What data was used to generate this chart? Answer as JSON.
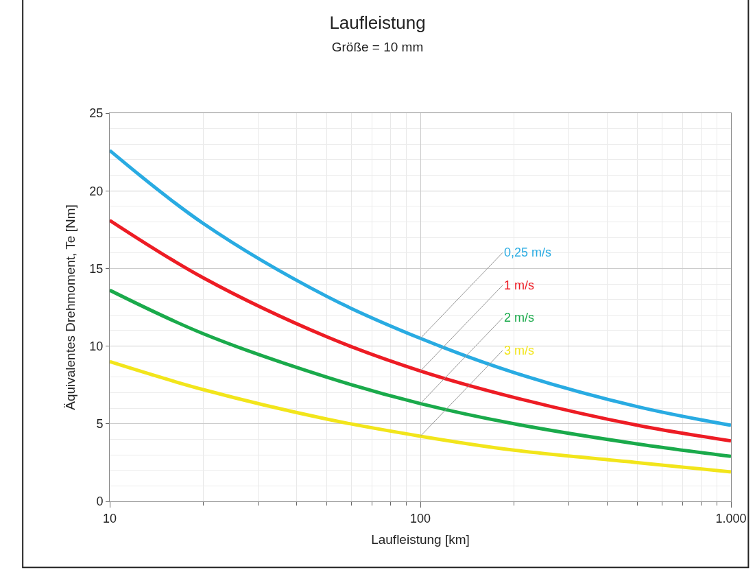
{
  "chart_data": {
    "type": "line",
    "title": "Laufleistung",
    "subtitle": "Größe = 10 mm",
    "xlabel": "Laufleistung [km]",
    "ylabel": "Äquivalentes Drehmoment, Te [Nm]",
    "x": [
      10,
      20,
      50,
      100,
      200,
      500,
      1000
    ],
    "series": [
      {
        "name": "0,25 m/s",
        "color": "#29abe2",
        "values": [
          22.6,
          17.9,
          13.2,
          10.5,
          8.3,
          6.1,
          4.9
        ]
      },
      {
        "name": "1 m/s",
        "color": "#ed1c24",
        "values": [
          18.1,
          14.4,
          10.6,
          8.4,
          6.7,
          4.9,
          3.9
        ]
      },
      {
        "name": "2 m/s",
        "color": "#1aaa4b",
        "values": [
          13.6,
          10.8,
          8.0,
          6.3,
          5.0,
          3.7,
          2.9
        ]
      },
      {
        "name": "3 m/s",
        "color": "#f2e51b",
        "values": [
          9.0,
          7.2,
          5.3,
          4.2,
          3.3,
          2.5,
          1.9
        ]
      }
    ],
    "log": "x",
    "xlim": [
      10,
      1000
    ],
    "xticks": [
      10,
      100,
      {
        "value": 1000,
        "label": "1.000"
      }
    ],
    "ylim": [
      0,
      25
    ],
    "yticks": [
      0,
      5,
      10,
      15,
      20,
      25
    ],
    "grid": true,
    "legend": false,
    "line_style": "solid",
    "marker": "none"
  }
}
